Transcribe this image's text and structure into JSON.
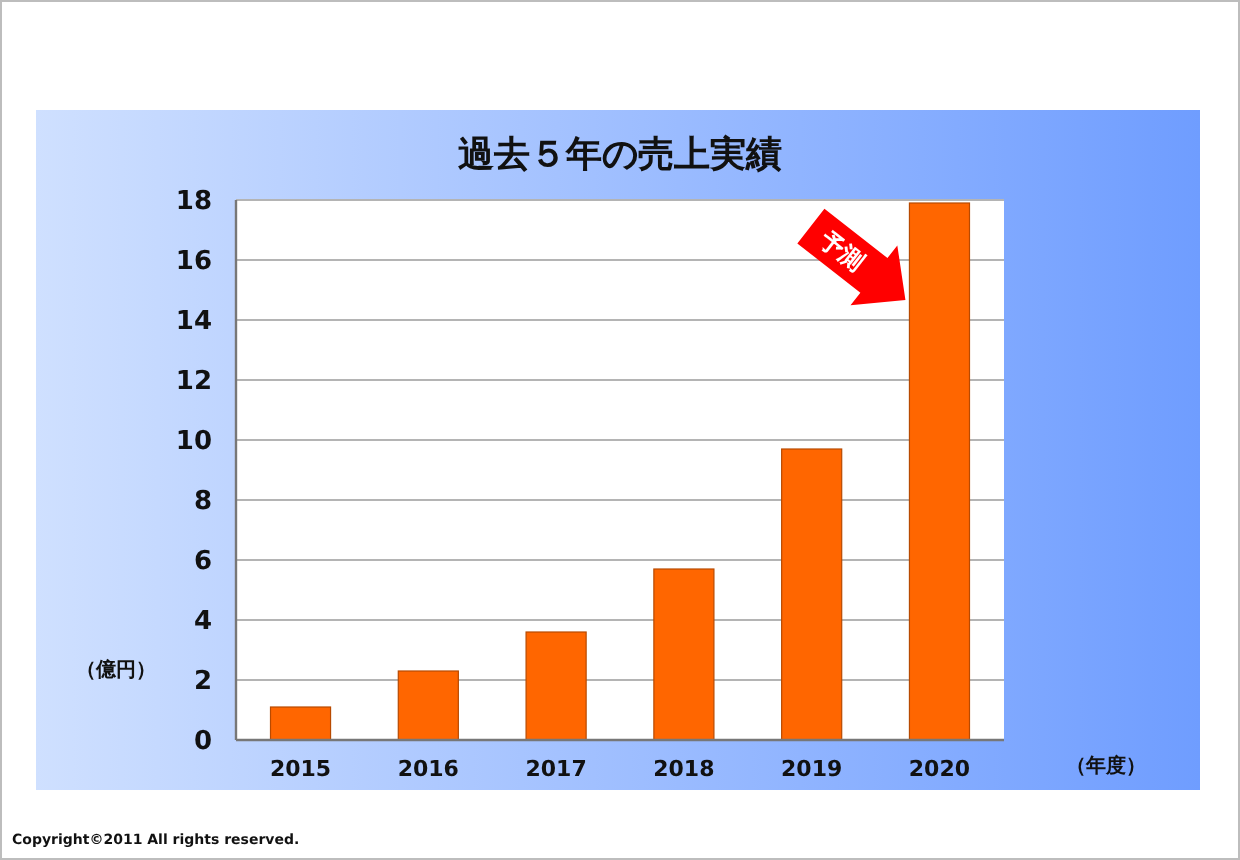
{
  "chart_data": {
    "type": "bar",
    "title": "過去５年の売上実績",
    "xlabel": "（年度）",
    "ylabel": "（億円）",
    "categories": [
      "2015",
      "2016",
      "2017",
      "2018",
      "2019",
      "2020"
    ],
    "values": [
      1.1,
      2.3,
      3.6,
      5.7,
      9.7,
      17.9
    ],
    "color": "#ff6600",
    "ylim": [
      0,
      18
    ],
    "yticks": [
      0,
      2,
      4,
      6,
      8,
      10,
      12,
      14,
      16,
      18
    ],
    "grid": "y",
    "annotations": [
      "予測",
      "Copyright©2011 All rights reserved."
    ]
  }
}
